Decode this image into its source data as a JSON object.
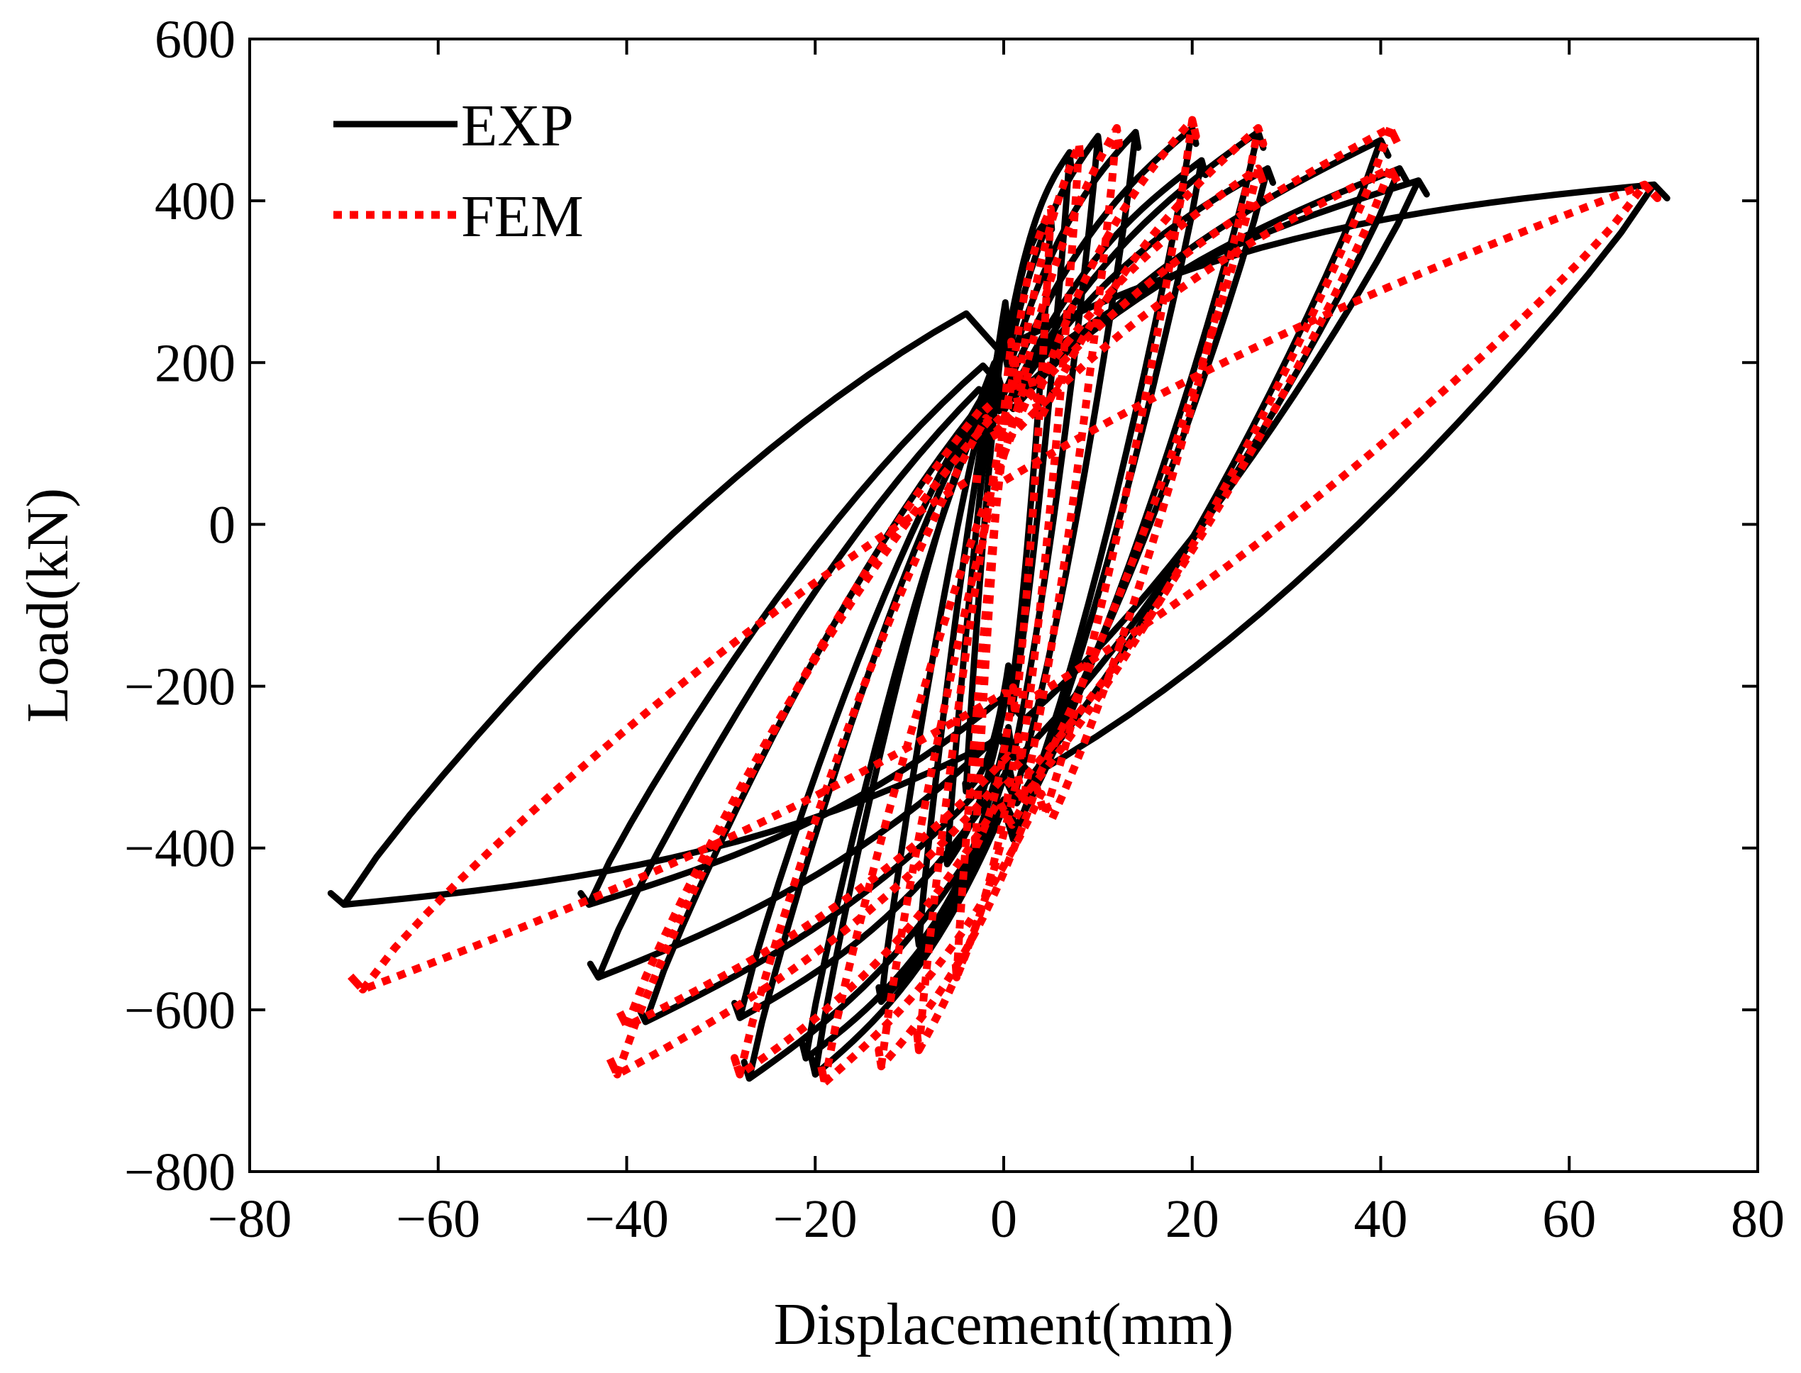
{
  "chart_data": {
    "type": "line",
    "title": "",
    "xlabel": "Displacement(mm)",
    "ylabel": "Load(kN)",
    "xlim": [
      -80,
      80
    ],
    "ylim": [
      -800,
      600
    ],
    "xticks": [
      -80,
      -60,
      -40,
      -20,
      0,
      20,
      40,
      60,
      80
    ],
    "yticks": [
      600,
      400,
      200,
      0,
      -200,
      -400,
      -600,
      -800
    ],
    "xtick_labels": [
      "−80",
      "−60",
      "−40",
      "−20",
      "0",
      "20",
      "40",
      "60",
      "80"
    ],
    "ytick_labels": [
      "600",
      "400",
      "200",
      "0",
      "−200",
      "−400",
      "−600",
      "−800"
    ],
    "grid": false,
    "legend_position": "top-left",
    "series": [
      {
        "name": "EXP",
        "color": "#000000",
        "style": "solid",
        "cycles": [
          {
            "amp_pos": 5,
            "peak_pos": 380,
            "amp_neg": -4,
            "peak_neg": -330,
            "pinch": 210
          },
          {
            "amp_pos": 7,
            "peak_pos": 460,
            "amp_neg": -6,
            "peak_neg": -420,
            "pinch": 220
          },
          {
            "amp_pos": 10,
            "peak_pos": 480,
            "amp_neg": -9,
            "peak_neg": -520,
            "pinch": 230
          },
          {
            "amp_pos": 14,
            "peak_pos": 485,
            "amp_neg": -13,
            "peak_neg": -590,
            "pinch": 240
          },
          {
            "amp_pos": 20,
            "peak_pos": 490,
            "amp_neg": -20,
            "peak_neg": -680,
            "pinch": 250
          },
          {
            "amp_pos": 21,
            "peak_pos": 450,
            "amp_neg": -21,
            "peak_neg": -660,
            "pinch": 240
          },
          {
            "amp_pos": 27,
            "peak_pos": 485,
            "amp_neg": -27,
            "peak_neg": -685,
            "pinch": 230
          },
          {
            "amp_pos": 28,
            "peak_pos": 440,
            "amp_neg": -28,
            "peak_neg": -610,
            "pinch": 220
          },
          {
            "amp_pos": 40,
            "peak_pos": 475,
            "amp_neg": -38,
            "peak_neg": -615,
            "pinch": 200
          },
          {
            "amp_pos": 42,
            "peak_pos": 440,
            "amp_neg": -43,
            "peak_neg": -560,
            "pinch": 190
          },
          {
            "amp_pos": 44,
            "peak_pos": 425,
            "amp_neg": -44,
            "peak_neg": -470,
            "pinch": 185
          },
          {
            "amp_pos": 69,
            "peak_pos": 420,
            "amp_neg": -70,
            "peak_neg": -470,
            "pinch": 250
          }
        ]
      },
      {
        "name": "FEM",
        "color": "#ff0000",
        "style": "dotted",
        "cycles": [
          {
            "amp_pos": 5,
            "peak_pos": 390,
            "amp_neg": -3,
            "peak_neg": -400,
            "pinch": 200
          },
          {
            "amp_pos": 8,
            "peak_pos": 470,
            "amp_neg": -5,
            "peak_neg": -560,
            "pinch": 210
          },
          {
            "amp_pos": 12,
            "peak_pos": 490,
            "amp_neg": -9,
            "peak_neg": -650,
            "pinch": 220
          },
          {
            "amp_pos": 20,
            "peak_pos": 500,
            "amp_neg": -13,
            "peak_neg": -670,
            "pinch": 230
          },
          {
            "amp_pos": 27,
            "peak_pos": 490,
            "amp_neg": -19,
            "peak_neg": -690,
            "pinch": 220
          },
          {
            "amp_pos": 27,
            "peak_pos": 440,
            "amp_neg": -28,
            "peak_neg": -680,
            "pinch": 210
          },
          {
            "amp_pos": 41,
            "peak_pos": 490,
            "amp_neg": -41,
            "peak_neg": -680,
            "pinch": 200
          },
          {
            "amp_pos": 41,
            "peak_pos": 440,
            "amp_neg": -40,
            "peak_neg": -620,
            "pinch": 180
          },
          {
            "amp_pos": 68,
            "peak_pos": 420,
            "amp_neg": -68,
            "peak_neg": -575,
            "pinch": 100
          }
        ]
      }
    ]
  }
}
